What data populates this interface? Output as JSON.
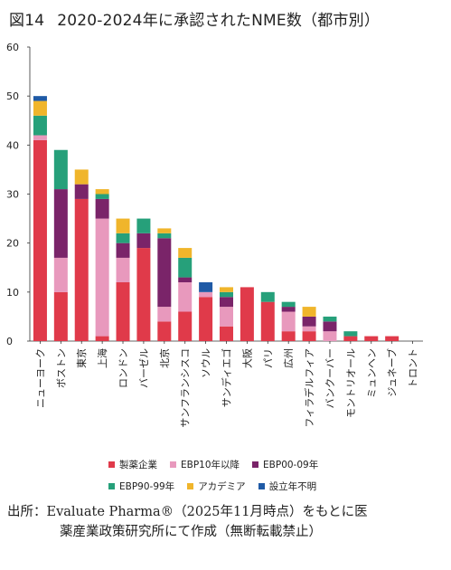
{
  "title": {
    "figure_number": "図14",
    "text": "2020-2024年に承認されたNME数（都市別）"
  },
  "source": {
    "line1": "出所：Evaluate Pharma®（2025年11月時点）をもとに医",
    "line2": "薬産業政策研究所にて作成（無断転載禁止）"
  },
  "colors": {
    "seiyaku": "#e03a4a",
    "ebp10": "#e899bd",
    "ebp00": "#7a2469",
    "ebp90": "#26a07a",
    "academia": "#f0b52b",
    "unknown": "#1f5aa6"
  },
  "chart_data": {
    "type": "bar",
    "stacked": true,
    "categories": [
      "ニューヨーク",
      "ボストン",
      "東京",
      "上海",
      "ロンドン",
      "バーゼル",
      "北京",
      "サンフランシスコ",
      "ソウル",
      "サンディエゴ",
      "大阪",
      "パリ",
      "広州",
      "フィラデルフィア",
      "バンクーバー",
      "モントリオール",
      "ミュンヘン",
      "ジュネーブ",
      "トロント"
    ],
    "series": [
      {
        "name": "製薬企業",
        "color_key": "seiyaku",
        "values": [
          41,
          10,
          29,
          1,
          12,
          19,
          4,
          6,
          9,
          3,
          11,
          8,
          2,
          2,
          0,
          1,
          1,
          1,
          0
        ]
      },
      {
        "name": "EBP10年以降",
        "color_key": "ebp10",
        "values": [
          1,
          7,
          0,
          24,
          5,
          0,
          3,
          6,
          1,
          4,
          0,
          0,
          4,
          1,
          2,
          0,
          0,
          0,
          0
        ]
      },
      {
        "name": "EBP00-09年",
        "color_key": "ebp00",
        "values": [
          0,
          14,
          3,
          4,
          3,
          3,
          14,
          1,
          0,
          2,
          0,
          0,
          1,
          2,
          2,
          0,
          0,
          0,
          0
        ]
      },
      {
        "name": "EBP90-99年",
        "color_key": "ebp90",
        "values": [
          4,
          8,
          0,
          1,
          2,
          3,
          1,
          4,
          0,
          1,
          0,
          2,
          1,
          0,
          1,
          1,
          0,
          0,
          0
        ]
      },
      {
        "name": "アカデミア",
        "color_key": "academia",
        "values": [
          3,
          0,
          3,
          1,
          3,
          0,
          1,
          2,
          0,
          1,
          0,
          0,
          0,
          2,
          0,
          0,
          0,
          0,
          0
        ]
      },
      {
        "name": "設立年不明",
        "color_key": "unknown",
        "values": [
          1,
          0,
          0,
          0,
          0,
          0,
          0,
          0,
          2,
          0,
          0,
          0,
          0,
          0,
          0,
          0,
          0,
          0,
          0
        ]
      }
    ],
    "ylim": [
      0,
      60
    ],
    "yticks": [
      "0",
      "10",
      "20",
      "30",
      "40",
      "50",
      "60"
    ],
    "xlabel": "",
    "ylabel": "",
    "grid": false,
    "legend_position": "bottom"
  }
}
